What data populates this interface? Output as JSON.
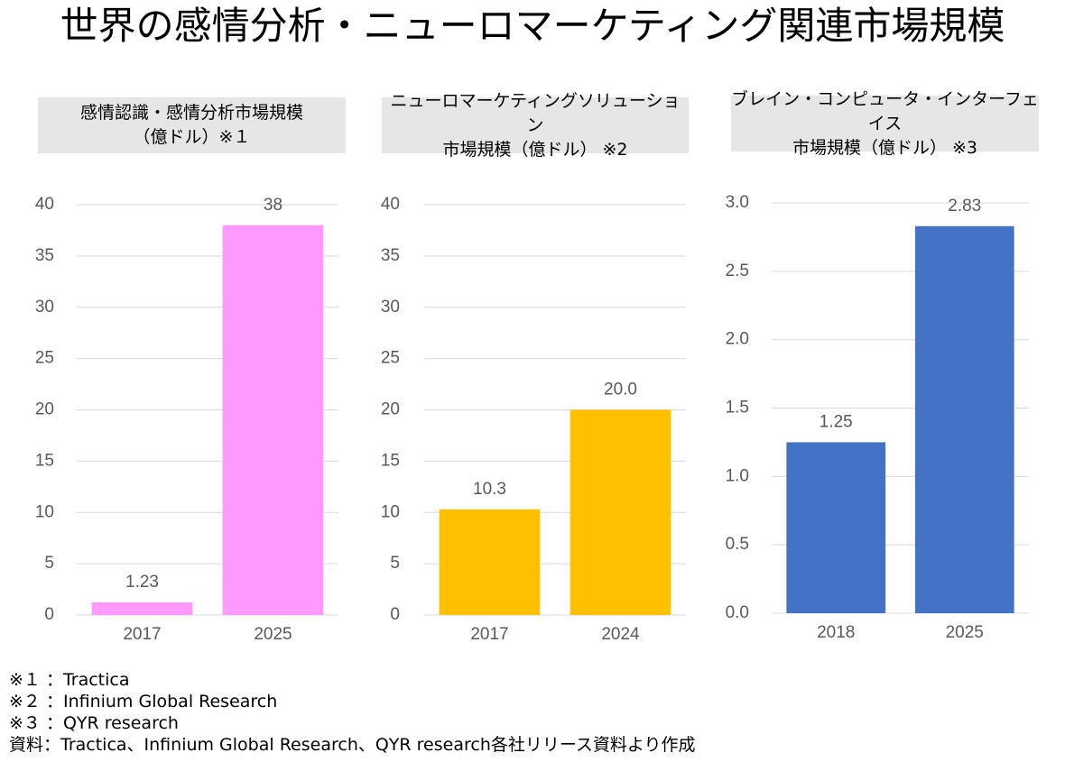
{
  "title": "世界の感情分析・ニューロマーケティング関連市場規模",
  "chart_data": [
    {
      "type": "bar",
      "title": "感情認識・感情分析市場規模\n（億ドル）※１",
      "categories": [
        "2017",
        "2025"
      ],
      "values": [
        1.23,
        38
      ],
      "color": "#ff99ff",
      "ylim": [
        0,
        40
      ],
      "yticks": [
        0,
        5,
        10,
        15,
        20,
        25,
        30,
        35,
        40
      ],
      "grid": true
    },
    {
      "type": "bar",
      "title": "ニューロマーケティングソリューション\n市場規模（億ドル） ※2",
      "categories": [
        "2017",
        "2024"
      ],
      "values": [
        10.3,
        20
      ],
      "value_labels": [
        "10.3",
        "20.0"
      ],
      "color": "#ffc000",
      "ylim": [
        0,
        40
      ],
      "yticks": [
        0,
        5,
        10,
        15,
        20,
        25,
        30,
        35,
        40
      ],
      "grid": true
    },
    {
      "type": "bar",
      "title": "ブレイン・コンピュータ・インターフェイス\n市場規模（億ドル） ※3",
      "categories": [
        "2018",
        "2025"
      ],
      "values": [
        1.25,
        2.83
      ],
      "color": "#4472c4",
      "ylim": [
        0,
        3
      ],
      "yticks": [
        {
          "value": 0,
          "label": "0.0"
        },
        0.5,
        {
          "value": 1,
          "label": "1.0"
        },
        1.5,
        {
          "value": 2,
          "label": "2.0"
        },
        2.5,
        {
          "value": 3,
          "label": "3.0"
        }
      ],
      "grid": true
    }
  ],
  "notes": [
    "※１ ：Tractica",
    "※２ ：Infinium Global Research",
    "※３ ：QYR research",
    "資料：Tractica、Infinium Global Research、QYR research各社リリース資料より作成"
  ]
}
